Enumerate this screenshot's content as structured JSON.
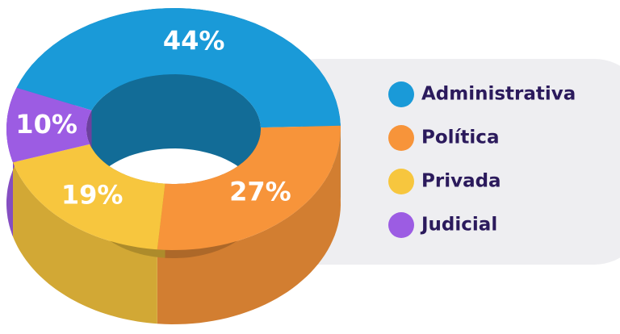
{
  "chart_data": {
    "type": "pie",
    "categories": [
      "Administrativa",
      "Política",
      "Privada",
      "Judicial"
    ],
    "values": [
      44,
      27,
      19,
      10
    ],
    "value_labels": [
      "44%",
      "27%",
      "19%",
      "10%"
    ],
    "colors": [
      "#1a9ad8",
      "#f7943a",
      "#f7c63e",
      "#9c5ce3"
    ]
  }
}
